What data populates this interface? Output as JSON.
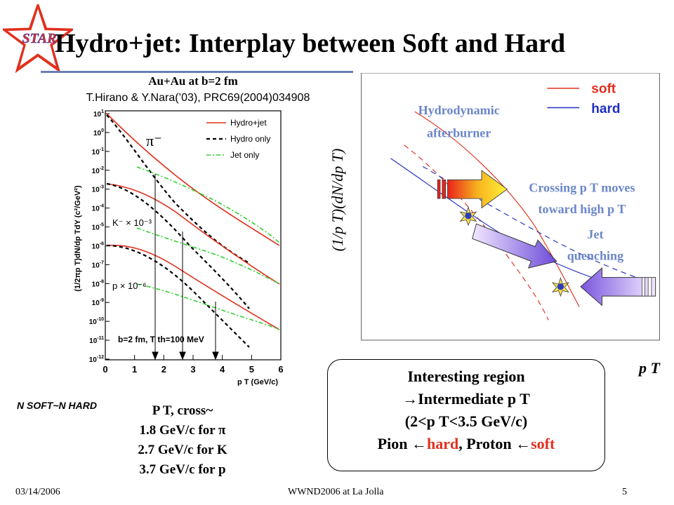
{
  "slide": {
    "title": "Hydro+jet: Interplay between Soft and Hard",
    "logo_text": "STAR",
    "footer_date": "03/14/2006",
    "footer_center": "WWND2006 at La Jolla",
    "page_number": "5"
  },
  "left_panel": {
    "subtitle": "Au+Au at b=2 fm",
    "reference": "T.Hirano & Y.Nara(’03), PRC69(2004)034908",
    "nsoft_nhard": "N SOFT~N HARD",
    "crossing": {
      "heading": "P T, cross~",
      "lines": [
        "1.8 GeV/c for π",
        "2.7 GeV/c for K",
        "3.7 GeV/c for p"
      ]
    },
    "plot": {
      "y_label": "(1/2πp T)dN/dp TdY (c²/GeV²)",
      "x_label": "p T (GeV/c)",
      "x_ticks": [
        "0",
        "1",
        "2",
        "3",
        "4",
        "5",
        "6"
      ],
      "y_tick_exponents": [
        "1",
        "0",
        "-1",
        "-2",
        "-3",
        "-4",
        "-5",
        "-6",
        "-7",
        "-8",
        "-9",
        "-10",
        "-11",
        "-12"
      ],
      "y_tick_base": "10",
      "legend": [
        "Hydro+jet",
        "Hydro only",
        "Jet only"
      ],
      "labels": {
        "pion": "π⁻",
        "kaon": "K⁻ × 10⁻³",
        "proton": "p × 10⁻⁶",
        "params": "b=2 fm, T th=100 MeV"
      }
    }
  },
  "right_panel": {
    "legend": {
      "soft": "soft",
      "hard": "hard"
    },
    "y_axis": "(1/p T)(dN/dp T)",
    "x_axis": "p T",
    "annotations": {
      "hydro_line1": "Hydrodynamic",
      "hydro_line2": "afterburner",
      "crossing_line1": "Crossing p T moves",
      "crossing_line2": "toward high p T",
      "jet_line1": "Jet",
      "jet_line2": "quenching"
    },
    "colors": {
      "soft": "#e0301e",
      "hard": "#1f2fbf",
      "annotation": "#6b86c9"
    }
  },
  "region_box": {
    "line1": "Interesting region",
    "arrow": "→",
    "line2": "Intermediate p T",
    "line3": "(2<p T<3.5 GeV/c)",
    "pion_text": "Pion ",
    "left_arrow": "←",
    "hard_text": "hard",
    "separator": ", Proton ",
    "soft_text": "soft"
  }
}
